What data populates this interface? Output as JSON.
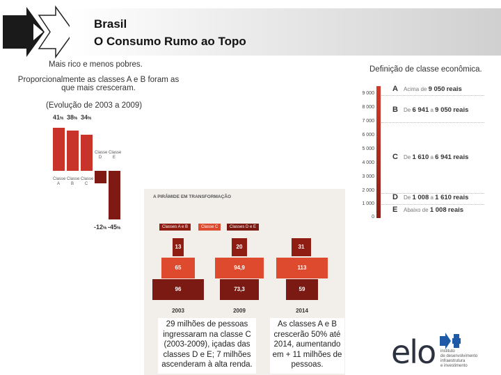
{
  "header": {
    "title_line1": "Brasil",
    "title_line2": "O Consumo Rumo ao Topo"
  },
  "left": {
    "subtitle": "Mais rico e menos pobres.",
    "statement_line1": "Proporcionalmente as classes A e B foram as",
    "statement_line2": "que mais cresceram.",
    "period": "(Evolução de 2003 a 2009)"
  },
  "right": {
    "caption": "Definição de classe econômica."
  },
  "chart_data": [
    {
      "type": "bar",
      "categories": [
        "Classe A",
        "Classe B",
        "Classe C",
        "Classe D",
        "Classe E"
      ],
      "values": [
        41,
        38,
        34,
        -12,
        -45
      ],
      "value_labels": [
        "41",
        "38",
        "34",
        "-12",
        "-45"
      ],
      "unit": "%"
    },
    {
      "type": "table",
      "ticks": [
        "9 000",
        "8 000",
        "7 000",
        "6 000",
        "5 000",
        "4 000",
        "3 000",
        "2 000",
        "1 000",
        "0"
      ],
      "rows": [
        {
          "class": "A",
          "prefix": "Acima de",
          "from": "9 050",
          "to": "",
          "unit": "reais"
        },
        {
          "class": "B",
          "prefix": "De",
          "from": "6 941",
          "to": "9 050",
          "unit": "reais"
        },
        {
          "class": "C",
          "prefix": "De",
          "from": "1 610",
          "to": "6 941",
          "unit": "reais"
        },
        {
          "class": "D",
          "prefix": "De",
          "from": "1 008",
          "to": "1 610",
          "unit": "reais"
        },
        {
          "class": "E",
          "prefix": "Abaixo de",
          "from": "1 008",
          "to": "",
          "unit": "reais"
        }
      ],
      "connector": "a"
    },
    {
      "type": "bar",
      "title": "A PIRÂMIDE EM TRANSFORMAÇÃO",
      "legend": [
        "Classes A e B",
        "Classe C",
        "Classes D e E"
      ],
      "categories": [
        "2003",
        "2009",
        "2014"
      ],
      "series": [
        {
          "name": "Classes A e B",
          "values": [
            13,
            20,
            31
          ]
        },
        {
          "name": "Classe C",
          "values": [
            65,
            94.9,
            113
          ]
        },
        {
          "name": "Classes D e E",
          "values": [
            96,
            73.3,
            59
          ]
        }
      ],
      "value_labels": {
        "ab": [
          "13",
          "20",
          "31"
        ],
        "c": [
          "65",
          "94,9",
          "113"
        ],
        "de": [
          "96",
          "73,3",
          "59"
        ]
      }
    }
  ],
  "notes": {
    "box1": "29 milhões de pessoas ingressaram na classe C (2003-2009), içadas das classes D e E; 7 milhões ascenderam à alta renda.",
    "box2": "As classes A e B crescerão 50% até 2014, aumentando em + 11 milhões de pessoas."
  },
  "logo": {
    "word": "elo",
    "sub1": "instituto",
    "sub2": "de desenvolvimento",
    "sub3": "infraestrutura",
    "sub4": "e investimento"
  },
  "colors": {
    "bar_red": "#c9342a",
    "ab": "#8f1d14",
    "c": "#dd4a2e",
    "de": "#7a1a12",
    "logo_blue": "#1f5aa6"
  }
}
